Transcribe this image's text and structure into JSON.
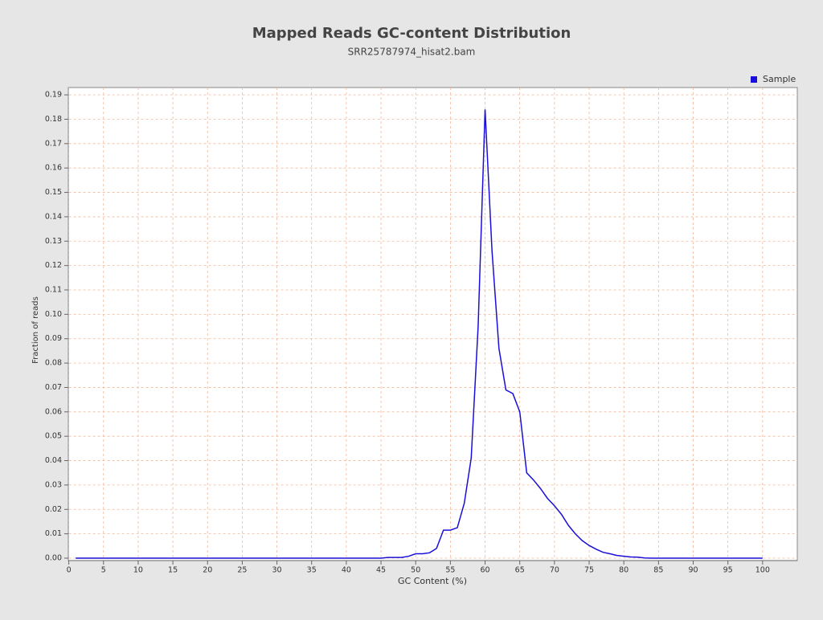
{
  "chart_data": {
    "type": "line",
    "title": "Mapped Reads GC-content Distribution",
    "subtitle": "SRR25787974_hisat2.bam",
    "x_label": "GC Content (%)",
    "y_label": "Fraction of reads",
    "x": [
      1,
      2,
      3,
      4,
      5,
      6,
      7,
      8,
      9,
      10,
      11,
      12,
      13,
      14,
      15,
      16,
      17,
      18,
      19,
      20,
      21,
      22,
      23,
      24,
      25,
      26,
      27,
      28,
      29,
      30,
      31,
      32,
      33,
      34,
      35,
      36,
      37,
      38,
      39,
      40,
      41,
      42,
      43,
      44,
      45,
      46,
      47,
      48,
      49,
      50,
      51,
      52,
      53,
      54,
      55,
      56,
      57,
      58,
      59,
      60,
      61,
      62,
      63,
      64,
      65,
      66,
      67,
      68,
      69,
      70,
      71,
      72,
      73,
      74,
      75,
      76,
      77,
      78,
      79,
      80,
      81,
      82,
      83,
      84,
      85,
      86,
      87,
      88,
      89,
      90,
      91,
      92,
      93,
      94,
      95,
      96,
      97,
      98,
      99,
      100
    ],
    "series": [
      {
        "name": "Sample",
        "color": "#1a0fd8",
        "values": [
          0,
          0,
          0,
          0,
          0,
          0,
          0,
          0,
          0,
          0,
          0,
          0,
          0,
          0,
          0,
          0,
          0,
          0,
          0,
          0,
          0,
          0,
          0,
          0,
          0,
          0,
          0,
          0,
          0,
          0,
          0,
          0,
          0,
          0,
          0,
          0,
          0,
          0,
          0,
          0,
          0,
          0,
          0,
          0,
          0,
          0.0003,
          0.0003,
          0.0003,
          0.0008,
          0.0018,
          0.0018,
          0.0022,
          0.004,
          0.0115,
          0.0115,
          0.0125,
          0.0225,
          0.041,
          0.095,
          0.184,
          0.126,
          0.086,
          0.069,
          0.0675,
          0.06,
          0.035,
          0.032,
          0.0285,
          0.0245,
          0.0215,
          0.018,
          0.0135,
          0.01,
          0.0072,
          0.0052,
          0.0037,
          0.0024,
          0.0018,
          0.0011,
          0.0008,
          0.0005,
          0.0004,
          0.0001,
          0,
          0,
          0,
          0,
          0,
          0,
          0,
          0,
          0,
          0,
          0,
          0,
          0,
          0,
          0,
          0,
          0
        ]
      }
    ],
    "xlim": [
      0,
      105
    ],
    "xticks": [
      0,
      5,
      10,
      15,
      20,
      25,
      30,
      35,
      40,
      45,
      50,
      55,
      60,
      65,
      70,
      75,
      80,
      85,
      90,
      95,
      100
    ],
    "ylim": [
      0,
      0.193
    ],
    "yticks": [
      {
        "value": 0,
        "label": "0.00"
      },
      {
        "value": 0.01,
        "label": "0.01"
      },
      {
        "value": 0.02,
        "label": "0.02"
      },
      {
        "value": 0.03,
        "label": "0.03"
      },
      {
        "value": 0.04,
        "label": "0.04"
      },
      {
        "value": 0.05,
        "label": "0.05"
      },
      {
        "value": 0.06,
        "label": "0.06"
      },
      {
        "value": 0.07,
        "label": "0.07"
      },
      {
        "value": 0.08,
        "label": "0.08"
      },
      {
        "value": 0.09,
        "label": "0.09"
      },
      {
        "value": 0.1,
        "label": "0.10"
      },
      {
        "value": 0.11,
        "label": "0.11"
      },
      {
        "value": 0.12,
        "label": "0.12"
      },
      {
        "value": 0.13,
        "label": "0.13"
      },
      {
        "value": 0.14,
        "label": "0.14"
      },
      {
        "value": 0.15,
        "label": "0.15"
      },
      {
        "value": 0.16,
        "label": "0.16"
      },
      {
        "value": 0.17,
        "label": "0.17"
      },
      {
        "value": 0.18,
        "label": "0.18"
      },
      {
        "value": 0.19,
        "label": "0.19"
      }
    ],
    "grid": true,
    "legend": "top-right"
  }
}
